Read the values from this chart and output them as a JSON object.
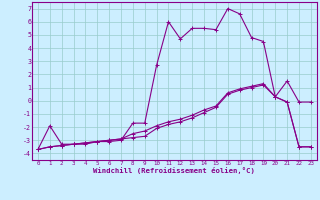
{
  "xlabel": "Windchill (Refroidissement éolien,°C)",
  "bg_color": "#cceeff",
  "grid_color": "#99cccc",
  "line_color": "#880088",
  "x_ticks": [
    0,
    1,
    2,
    3,
    4,
    5,
    6,
    7,
    8,
    9,
    10,
    11,
    12,
    13,
    14,
    15,
    16,
    17,
    18,
    19,
    20,
    21,
    22,
    23
  ],
  "ylim": [
    -4.5,
    7.5
  ],
  "xlim": [
    -0.5,
    23.5
  ],
  "series1_x": [
    0,
    1,
    2,
    3,
    4,
    5,
    6,
    7,
    8,
    9,
    10,
    11,
    12,
    13,
    14,
    15,
    16,
    17,
    18,
    19,
    20,
    21,
    22,
    23
  ],
  "series1_y": [
    -3.7,
    -1.9,
    -3.3,
    -3.3,
    -3.3,
    -3.1,
    -3.1,
    -3.0,
    -1.7,
    -1.7,
    2.7,
    6.0,
    4.7,
    5.5,
    5.5,
    5.4,
    7.0,
    6.6,
    4.8,
    4.5,
    0.3,
    1.5,
    -0.1,
    -0.1
  ],
  "series2_x": [
    0,
    1,
    2,
    3,
    4,
    5,
    6,
    7,
    8,
    9,
    10,
    11,
    12,
    13,
    14,
    15,
    16,
    17,
    18,
    19,
    20,
    21,
    22,
    23
  ],
  "series2_y": [
    -3.7,
    -3.5,
    -3.4,
    -3.3,
    -3.2,
    -3.1,
    -3.0,
    -2.9,
    -2.8,
    -2.7,
    -2.1,
    -1.8,
    -1.6,
    -1.3,
    -0.9,
    -0.5,
    0.5,
    0.8,
    1.0,
    1.2,
    0.3,
    -0.1,
    -3.5,
    -3.5
  ],
  "series3_x": [
    0,
    1,
    2,
    3,
    4,
    5,
    6,
    7,
    8,
    9,
    10,
    11,
    12,
    13,
    14,
    15,
    16,
    17,
    18,
    19,
    20,
    21,
    22,
    23
  ],
  "series3_y": [
    -3.7,
    -3.5,
    -3.4,
    -3.3,
    -3.2,
    -3.1,
    -3.0,
    -2.9,
    -2.5,
    -2.3,
    -1.9,
    -1.6,
    -1.4,
    -1.1,
    -0.7,
    -0.4,
    0.6,
    0.9,
    1.1,
    1.3,
    0.3,
    -0.1,
    -3.5,
    -3.5
  ],
  "yticks": [
    -4,
    -3,
    -2,
    -1,
    0,
    1,
    2,
    3,
    4,
    5,
    6,
    7
  ]
}
